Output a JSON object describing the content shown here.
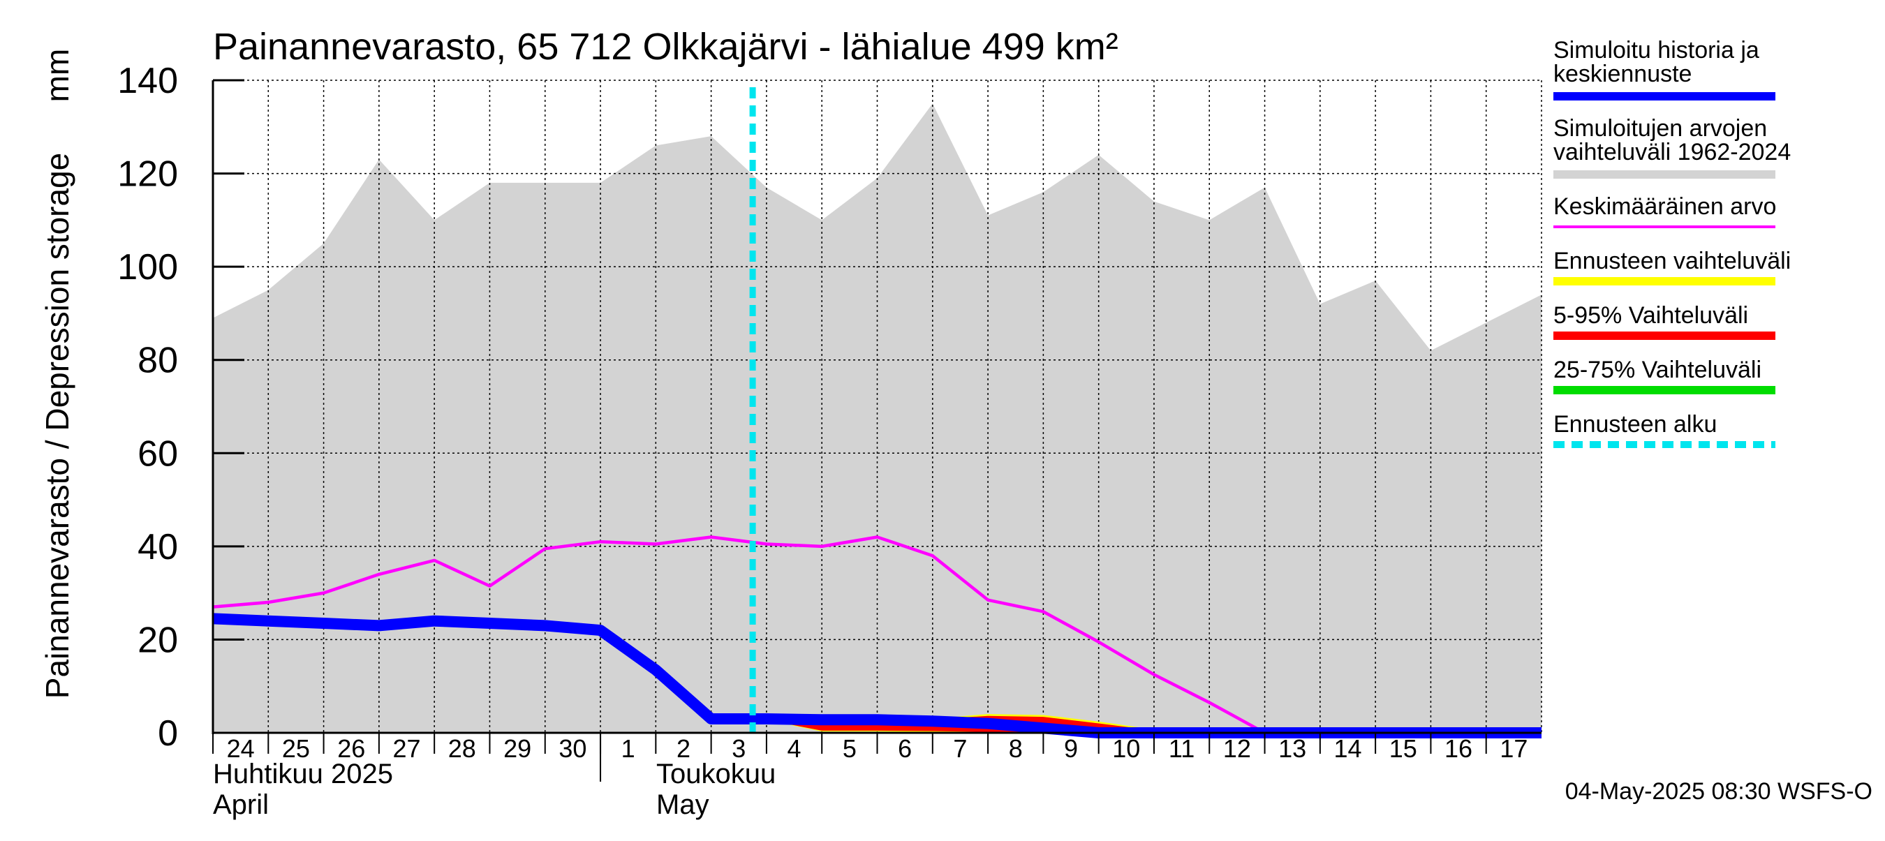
{
  "chart_data": {
    "type": "line",
    "title": "Painannevarasto, 65 712 Olkkajärvi - lähialue 499 km²",
    "ylabel": "Painannevarasto / Depression storage",
    "yunit": "mm",
    "ylim": [
      0,
      140
    ],
    "yticks": [
      "0",
      "20",
      "40",
      "60",
      "80",
      "100",
      "120",
      "140"
    ],
    "grid": true,
    "legend_position": "right",
    "x": [
      "2025-04-24",
      "2025-04-25",
      "2025-04-26",
      "2025-04-27",
      "2025-04-28",
      "2025-04-29",
      "2025-04-30",
      "2025-05-01",
      "2025-05-02",
      "2025-05-03",
      "2025-05-04",
      "2025-05-05",
      "2025-05-06",
      "2025-05-07",
      "2025-05-08",
      "2025-05-09",
      "2025-05-10",
      "2025-05-11",
      "2025-05-12",
      "2025-05-13",
      "2025-05-14",
      "2025-05-15",
      "2025-05-16",
      "2025-05-17",
      "2025-05-18"
    ],
    "xtick_labels": [
      "24",
      "25",
      "26",
      "27",
      "28",
      "29",
      "30",
      "1",
      "2",
      "3",
      "4",
      "5",
      "6",
      "7",
      "8",
      "9",
      "10",
      "11",
      "12",
      "13",
      "14",
      "15",
      "16",
      "17"
    ],
    "month_labels": [
      {
        "line1": "Huhtikuu  2025",
        "line2": "April"
      },
      {
        "line1": "Toukokuu",
        "line2": "May"
      }
    ],
    "forecast_start": "2025-05-04",
    "series": [
      {
        "name": "Simuloitujen arvojen vaihteluväli 1962-2024",
        "kind": "band",
        "color": "#d3d3d3",
        "upper": [
          89,
          95,
          105,
          123,
          110,
          118,
          118,
          118,
          126,
          128,
          117,
          110,
          119,
          135,
          111,
          116,
          124,
          114,
          110,
          117,
          92,
          97,
          82,
          88,
          94
        ],
        "lower": [
          0,
          0,
          0,
          0,
          0,
          0,
          0,
          0,
          0,
          0,
          0,
          0,
          0,
          0,
          0,
          0,
          0,
          0,
          0,
          0,
          0,
          0,
          0,
          0,
          0
        ]
      },
      {
        "name": "Ennusteen vaihteluväli",
        "kind": "band",
        "color": "#ffff00",
        "x_start": "2025-05-04",
        "upper": [
          3.0,
          2.5,
          2.6,
          2.8,
          3.8,
          3.6,
          2.2,
          0.5,
          0.0,
          0.0,
          0.0,
          0.0,
          0.0,
          0.0,
          0.0
        ],
        "lower": [
          3.0,
          0.5,
          0.5,
          0.4,
          0.3,
          0.2,
          0.0,
          0.0,
          0.0,
          0.0,
          0.0,
          0.0,
          0.0,
          0.0,
          0.0
        ]
      },
      {
        "name": "5-95% Vaihteluväli",
        "kind": "band",
        "color": "#ff0000",
        "x_start": "2025-05-04",
        "upper": [
          3.0,
          2.4,
          2.5,
          2.7,
          3.4,
          3.2,
          1.8,
          0.3,
          0.0,
          0.0,
          0.0,
          0.0,
          0.0,
          0.0,
          0.0
        ],
        "lower": [
          3.0,
          0.7,
          0.7,
          0.6,
          0.4,
          0.2,
          0.0,
          0.0,
          0.0,
          0.0,
          0.0,
          0.0,
          0.0,
          0.0,
          0.0
        ]
      },
      {
        "name": "25-75% Vaihteluväli",
        "kind": "band",
        "color": "#00dd00",
        "x_start": "2025-05-04",
        "upper": [
          3.0,
          2.9,
          2.9,
          2.8,
          2.6,
          1.6,
          0.6,
          0.2,
          0.0,
          0.0,
          0.0,
          0.0,
          0.0,
          0.0,
          0.0
        ],
        "lower": [
          3.0,
          2.6,
          2.6,
          2.4,
          2.0,
          1.0,
          0.2,
          0.0,
          0.0,
          0.0,
          0.0,
          0.0,
          0.0,
          0.0,
          0.0
        ]
      },
      {
        "name": "Keskimääräinen arvo",
        "kind": "line",
        "color": "#ff00ff",
        "values": [
          27,
          28,
          30,
          34,
          37,
          31.5,
          39.5,
          41,
          40.5,
          42,
          40.5,
          40,
          42,
          38,
          28.5,
          26,
          19.5,
          12.5,
          6.5,
          0,
          0,
          0,
          0,
          0,
          0
        ]
      },
      {
        "name": "Simuloitu historia ja keskiennuste",
        "kind": "line",
        "color": "#0000ff",
        "values": [
          24.5,
          24,
          23.5,
          23,
          24,
          23.5,
          23,
          22,
          13.5,
          3,
          3,
          2.8,
          2.8,
          2.5,
          2.0,
          1.0,
          0.0,
          0.0,
          0.0,
          0.0,
          0.0,
          0.0,
          0.0,
          0.0,
          0.0
        ]
      }
    ]
  },
  "legend": {
    "items": [
      {
        "label1": "Simuloitu historia ja",
        "label2": "keskiennuste",
        "color": "#0000ff",
        "style": "solid"
      },
      {
        "label1": "Simuloitujen arvojen",
        "label2": "vaihteluväli 1962-2024",
        "color": "#d3d3d3",
        "style": "solid"
      },
      {
        "label1": "Keskimääräinen arvo",
        "label2": "",
        "color": "#ff00ff",
        "style": "thin"
      },
      {
        "label1": "Ennusteen vaihteluväli",
        "label2": "",
        "color": "#ffff00",
        "style": "solid"
      },
      {
        "label1": "5-95% Vaihteluväli",
        "label2": "",
        "color": "#ff0000",
        "style": "solid"
      },
      {
        "label1": "25-75% Vaihteluväli",
        "label2": "",
        "color": "#00dd00",
        "style": "solid"
      },
      {
        "label1": "Ennusteen alku",
        "label2": "",
        "color": "#00e5ee",
        "style": "dashed"
      }
    ]
  },
  "footer": {
    "timestamp": "04-May-2025 08:30 WSFS-O"
  }
}
